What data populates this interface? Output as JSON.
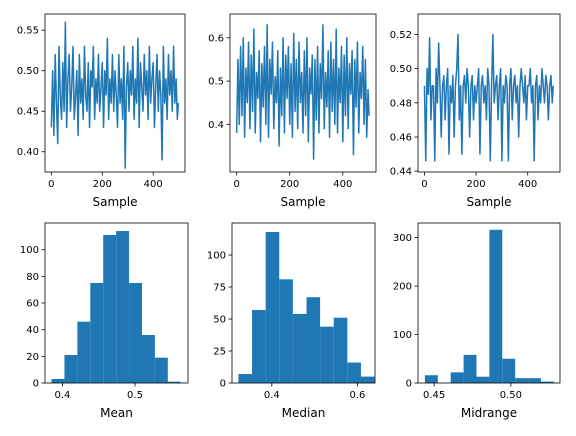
{
  "colors": {
    "series": "#1f77b4",
    "axis": "#000000",
    "background": "#ffffff"
  },
  "chart_data": [
    {
      "type": "line",
      "id": "trace-mean",
      "xlabel": "Sample",
      "ylabel": "",
      "xlim": [
        -25,
        525
      ],
      "ylim": [
        0.375,
        0.57
      ],
      "xticks": [
        0,
        200,
        400
      ],
      "xtick_labels": [
        "0",
        "200",
        "400"
      ],
      "yticks": [
        0.4,
        0.45,
        0.5,
        0.55
      ],
      "ytick_labels": [
        "0.40",
        "0.45",
        "0.50",
        "0.55"
      ],
      "series": [
        {
          "points_x": [
            0,
            5,
            10,
            15,
            20,
            25,
            30,
            35,
            40,
            45,
            50,
            55,
            60,
            65,
            70,
            75,
            80,
            85,
            90,
            95,
            100,
            105,
            110,
            115,
            120,
            125,
            130,
            135,
            140,
            145,
            150,
            155,
            160,
            165,
            170,
            175,
            180,
            185,
            190,
            195,
            200,
            205,
            210,
            215,
            220,
            225,
            230,
            235,
            240,
            245,
            250,
            255,
            260,
            265,
            270,
            275,
            280,
            285,
            290,
            295,
            300,
            305,
            310,
            315,
            320,
            325,
            330,
            335,
            340,
            345,
            350,
            355,
            360,
            365,
            370,
            375,
            380,
            385,
            390,
            395,
            400,
            405,
            410,
            415,
            420,
            425,
            430,
            435,
            440,
            445,
            450,
            455,
            460,
            465,
            470,
            475,
            480,
            485,
            490,
            495,
            499
          ],
          "values": [
            0.43,
            0.5,
            0.42,
            0.52,
            0.46,
            0.41,
            0.53,
            0.47,
            0.44,
            0.51,
            0.45,
            0.56,
            0.43,
            0.49,
            0.52,
            0.45,
            0.48,
            0.53,
            0.44,
            0.47,
            0.5,
            0.42,
            0.52,
            0.46,
            0.49,
            0.44,
            0.53,
            0.47,
            0.45,
            0.51,
            0.43,
            0.5,
            0.48,
            0.53,
            0.44,
            0.49,
            0.46,
            0.52,
            0.45,
            0.48,
            0.51,
            0.43,
            0.5,
            0.47,
            0.54,
            0.44,
            0.49,
            0.46,
            0.52,
            0.45,
            0.5,
            0.47,
            0.43,
            0.52,
            0.46,
            0.49,
            0.44,
            0.53,
            0.38,
            0.48,
            0.51,
            0.45,
            0.5,
            0.47,
            0.53,
            0.44,
            0.49,
            0.46,
            0.54,
            0.43,
            0.51,
            0.48,
            0.45,
            0.52,
            0.47,
            0.5,
            0.44,
            0.53,
            0.46,
            0.49,
            0.51,
            0.43,
            0.48,
            0.52,
            0.45,
            0.5,
            0.47,
            0.39,
            0.53,
            0.46,
            0.49,
            0.44,
            0.52,
            0.47,
            0.5,
            0.45,
            0.53,
            0.46,
            0.49,
            0.44,
            0.46
          ]
        }
      ]
    },
    {
      "type": "line",
      "id": "trace-median",
      "xlabel": "Sample",
      "ylabel": "",
      "xlim": [
        -25,
        525
      ],
      "ylim": [
        0.29,
        0.655
      ],
      "xticks": [
        0,
        200,
        400
      ],
      "xtick_labels": [
        "0",
        "200",
        "400"
      ],
      "yticks": [
        0.4,
        0.5,
        0.6
      ],
      "ytick_labels": [
        "0.4",
        "0.5",
        "0.6"
      ],
      "series": [
        {
          "points_x": [
            0,
            5,
            10,
            15,
            20,
            25,
            30,
            35,
            40,
            45,
            50,
            55,
            60,
            65,
            70,
            75,
            80,
            85,
            90,
            95,
            100,
            105,
            110,
            115,
            120,
            125,
            130,
            135,
            140,
            145,
            150,
            155,
            160,
            165,
            170,
            175,
            180,
            185,
            190,
            195,
            200,
            205,
            210,
            215,
            220,
            225,
            230,
            235,
            240,
            245,
            250,
            255,
            260,
            265,
            270,
            275,
            280,
            285,
            290,
            295,
            300,
            305,
            310,
            315,
            320,
            325,
            330,
            335,
            340,
            345,
            350,
            355,
            360,
            365,
            370,
            375,
            380,
            385,
            390,
            395,
            400,
            405,
            410,
            415,
            420,
            425,
            430,
            435,
            440,
            445,
            450,
            455,
            460,
            465,
            470,
            475,
            480,
            485,
            490,
            495,
            499
          ],
          "values": [
            0.38,
            0.55,
            0.4,
            0.58,
            0.42,
            0.6,
            0.37,
            0.53,
            0.45,
            0.59,
            0.39,
            0.56,
            0.43,
            0.62,
            0.38,
            0.52,
            0.46,
            0.57,
            0.36,
            0.54,
            0.44,
            0.58,
            0.4,
            0.63,
            0.37,
            0.55,
            0.47,
            0.59,
            0.39,
            0.51,
            0.45,
            0.57,
            0.35,
            0.53,
            0.42,
            0.6,
            0.38,
            0.56,
            0.46,
            0.58,
            0.4,
            0.54,
            0.37,
            0.61,
            0.43,
            0.55,
            0.39,
            0.59,
            0.45,
            0.52,
            0.38,
            0.57,
            0.42,
            0.6,
            0.36,
            0.53,
            0.47,
            0.56,
            0.32,
            0.55,
            0.41,
            0.58,
            0.38,
            0.54,
            0.46,
            0.63,
            0.39,
            0.52,
            0.44,
            0.57,
            0.37,
            0.59,
            0.43,
            0.55,
            0.4,
            0.62,
            0.38,
            0.53,
            0.45,
            0.58,
            0.36,
            0.56,
            0.42,
            0.6,
            0.39,
            0.54,
            0.47,
            0.57,
            0.33,
            0.55,
            0.44,
            0.59,
            0.38,
            0.52,
            0.46,
            0.58,
            0.4,
            0.55,
            0.37,
            0.48,
            0.42
          ]
        }
      ]
    },
    {
      "type": "line",
      "id": "trace-midrange",
      "xlabel": "Sample",
      "ylabel": "",
      "xlim": [
        -25,
        525
      ],
      "ylim": [
        0.4395,
        0.532
      ],
      "xticks": [
        0,
        200,
        400
      ],
      "xtick_labels": [
        "0",
        "200",
        "400"
      ],
      "yticks": [
        0.44,
        0.46,
        0.48,
        0.5,
        0.52
      ],
      "ytick_labels": [
        "0.44",
        "0.46",
        "0.48",
        "0.50",
        "0.52"
      ],
      "series": [
        {
          "points_x": [
            0,
            5,
            10,
            15,
            20,
            25,
            30,
            35,
            40,
            45,
            50,
            55,
            60,
            65,
            70,
            75,
            80,
            85,
            90,
            95,
            100,
            105,
            110,
            115,
            120,
            125,
            130,
            135,
            140,
            145,
            150,
            155,
            160,
            165,
            170,
            175,
            180,
            185,
            190,
            195,
            200,
            205,
            210,
            215,
            220,
            225,
            230,
            235,
            240,
            245,
            250,
            255,
            260,
            265,
            270,
            275,
            280,
            285,
            290,
            295,
            300,
            305,
            310,
            315,
            320,
            325,
            330,
            335,
            340,
            345,
            350,
            355,
            360,
            365,
            370,
            375,
            380,
            385,
            390,
            395,
            400,
            405,
            410,
            415,
            420,
            425,
            430,
            435,
            440,
            445,
            450,
            455,
            460,
            465,
            470,
            475,
            480,
            485,
            490,
            495,
            499
          ],
          "values": [
            0.49,
            0.446,
            0.5,
            0.485,
            0.518,
            0.47,
            0.49,
            0.49,
            0.446,
            0.5,
            0.48,
            0.515,
            0.49,
            0.46,
            0.49,
            0.496,
            0.47,
            0.49,
            0.5,
            0.45,
            0.49,
            0.48,
            0.496,
            0.46,
            0.49,
            0.5,
            0.52,
            0.47,
            0.49,
            0.45,
            0.49,
            0.496,
            0.48,
            0.5,
            0.49,
            0.46,
            0.49,
            0.496,
            0.47,
            0.49,
            0.48,
            0.49,
            0.5,
            0.45,
            0.49,
            0.496,
            0.48,
            0.49,
            0.47,
            0.5,
            0.49,
            0.446,
            0.49,
            0.52,
            0.48,
            0.49,
            0.496,
            0.47,
            0.49,
            0.5,
            0.446,
            0.49,
            0.48,
            0.496,
            0.49,
            0.446,
            0.49,
            0.5,
            0.47,
            0.49,
            0.496,
            0.48,
            0.49,
            0.46,
            0.49,
            0.5,
            0.49,
            0.48,
            0.496,
            0.47,
            0.49,
            0.49,
            0.5,
            0.48,
            0.49,
            0.446,
            0.49,
            0.496,
            0.47,
            0.49,
            0.48,
            0.5,
            0.49,
            0.48,
            0.496,
            0.49,
            0.47,
            0.49,
            0.496,
            0.48,
            0.49
          ]
        }
      ]
    },
    {
      "type": "bar",
      "id": "hist-mean",
      "xlabel": "Mean",
      "ylabel": "",
      "xlim": [
        0.376,
        0.573
      ],
      "ylim": [
        0,
        120
      ],
      "xticks": [
        0.4,
        0.5
      ],
      "xtick_labels": [
        "0.4",
        "0.5"
      ],
      "yticks": [
        0,
        20,
        40,
        60,
        80,
        100
      ],
      "ytick_labels": [
        "0",
        "20",
        "40",
        "60",
        "80",
        "100"
      ],
      "bin_edges": [
        0.385,
        0.4028,
        0.4206,
        0.4384,
        0.4562,
        0.474,
        0.4918,
        0.5096,
        0.5274,
        0.5452,
        0.563
      ],
      "values": [
        3,
        21,
        46,
        75,
        111,
        114,
        75,
        36,
        19,
        1
      ]
    },
    {
      "type": "bar",
      "id": "hist-median",
      "xlabel": "Median",
      "ylabel": "",
      "xlim": [
        0.307,
        0.641
      ],
      "ylim": [
        0,
        125
      ],
      "xticks": [
        0.4,
        0.6
      ],
      "xtick_labels": [
        "0.4",
        "0.6"
      ],
      "yticks": [
        0,
        25,
        50,
        75,
        100
      ],
      "ytick_labels": [
        "0",
        "25",
        "50",
        "75",
        "100"
      ],
      "bin_edges": [
        0.322,
        0.3538,
        0.3856,
        0.4174,
        0.4492,
        0.481,
        0.5128,
        0.5446,
        0.5764,
        0.6082,
        0.64
      ],
      "values": [
        7,
        57,
        118,
        81,
        54,
        67,
        44,
        51,
        16,
        5
      ]
    },
    {
      "type": "bar",
      "id": "hist-midrange",
      "xlabel": "Midrange",
      "ylabel": "",
      "xlim": [
        0.4395,
        0.532
      ],
      "ylim": [
        0,
        330
      ],
      "xticks": [
        0.45,
        0.5
      ],
      "xtick_labels": [
        "0.45",
        "0.50"
      ],
      "yticks": [
        0,
        100,
        200,
        300
      ],
      "ytick_labels": [
        "0",
        "100",
        "200",
        "300"
      ],
      "bin_edges": [
        0.444,
        0.4524,
        0.4608,
        0.4692,
        0.4776,
        0.486,
        0.4944,
        0.5028,
        0.5112,
        0.5196,
        0.528
      ],
      "values": [
        16,
        0,
        22,
        58,
        13,
        316,
        50,
        10,
        10,
        3
      ]
    }
  ]
}
